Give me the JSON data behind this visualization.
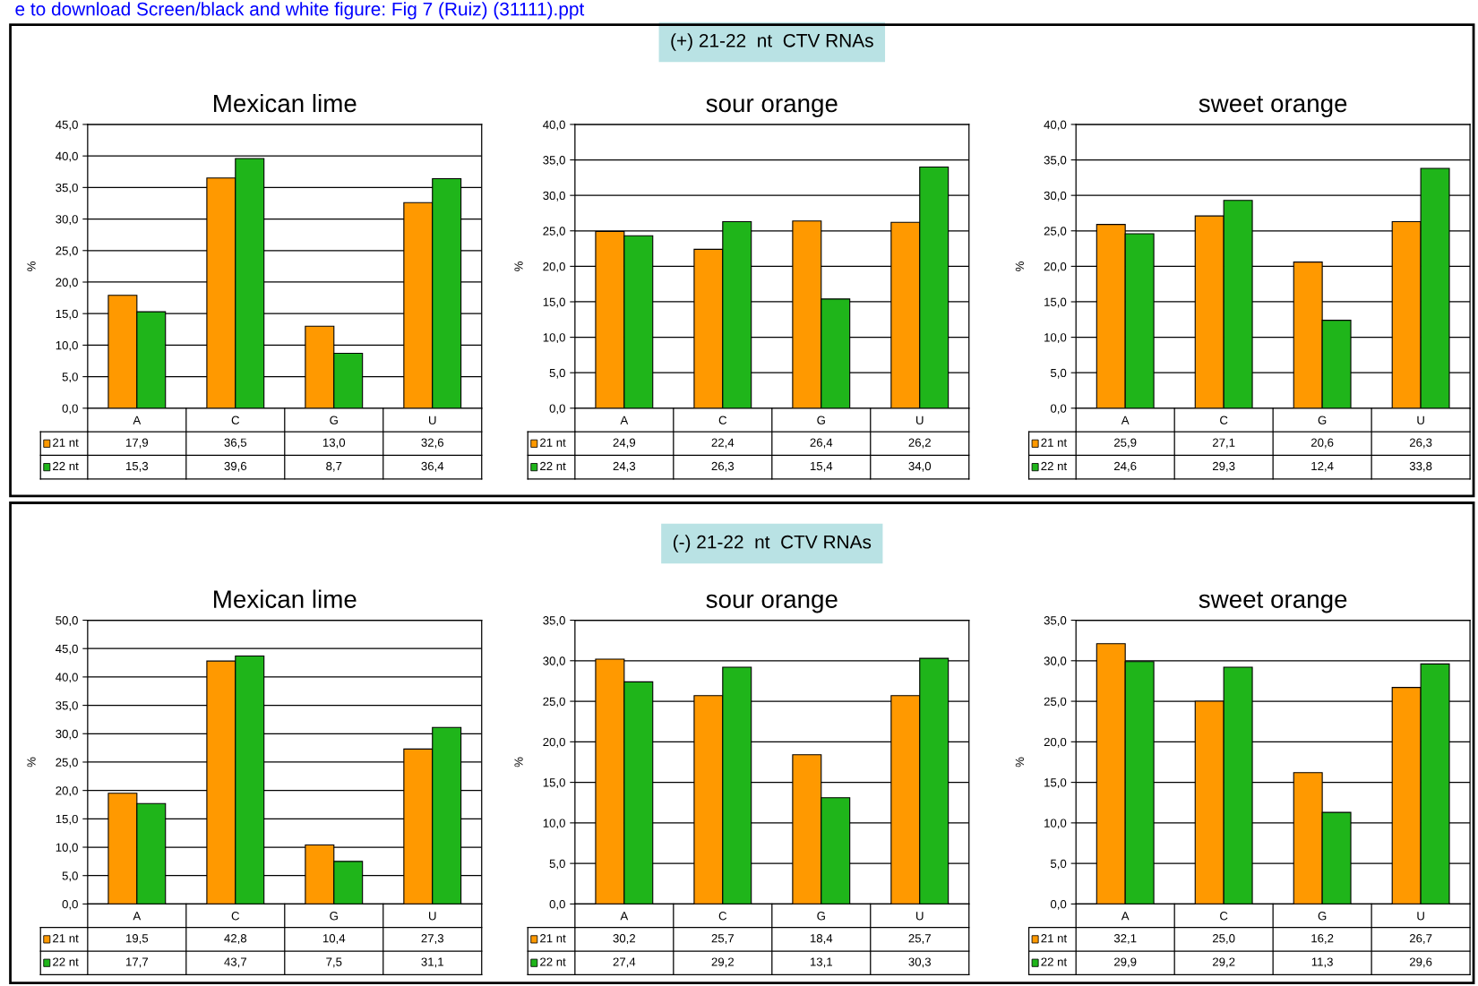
{
  "chart_data": [
    {
      "type": "bar",
      "title": "Mexican lime",
      "ylabel": "%",
      "annotations": [
        "e to download Screen/black and white figure: Fig 7 (Ruiz) (31111).ppt"
      ],
      "categories": [
        "A",
        "C",
        "G",
        "U"
      ],
      "grid": "y",
      "legend": "bottom",
      "ylim": [
        0,
        45
      ],
      "yticks": [
        {
          "value": 0,
          "label": "0,0"
        },
        {
          "value": 5,
          "label": "5,0"
        },
        {
          "value": 10,
          "label": "10,0"
        },
        {
          "value": 15,
          "label": "15,0"
        },
        {
          "value": 20,
          "label": "20,0"
        },
        {
          "value": 25,
          "label": "25,0"
        },
        {
          "value": 30,
          "label": "30,0"
        },
        {
          "value": 35,
          "label": "35,0"
        },
        {
          "value": 40,
          "label": "40,0"
        },
        {
          "value": 45,
          "label": "45,0"
        }
      ],
      "series": [
        {
          "name": "21 nt",
          "color": "#ff9900",
          "values": [
            17.9,
            36.5,
            13.0,
            32.6
          ],
          "value_labels": [
            "17,9",
            "36,5",
            "13,0",
            "32,6"
          ]
        },
        {
          "name": "22 nt",
          "color": "#1fb51a",
          "values": [
            15.3,
            39.6,
            8.7,
            36.4
          ],
          "value_labels": [
            "15,3",
            "39,6",
            "8,7",
            "36,4"
          ]
        }
      ]
    },
    {
      "type": "bar",
      "title": "sour orange",
      "subtitle": "(+) 21-22  nt  CTV RNAs",
      "ylabel": "%",
      "categories": [
        "A",
        "C",
        "G",
        "U"
      ],
      "grid": "y",
      "legend": "bottom",
      "ylim": [
        0,
        40
      ],
      "yticks": [
        {
          "value": 0,
          "label": "0,0"
        },
        {
          "value": 5,
          "label": "5,0"
        },
        {
          "value": 10,
          "label": "10,0"
        },
        {
          "value": 15,
          "label": "15,0"
        },
        {
          "value": 20,
          "label": "20,0"
        },
        {
          "value": 25,
          "label": "25,0"
        },
        {
          "value": 30,
          "label": "30,0"
        },
        {
          "value": 35,
          "label": "35,0"
        },
        {
          "value": 40,
          "label": "40,0"
        }
      ],
      "series": [
        {
          "name": "21 nt",
          "color": "#ff9900",
          "values": [
            24.9,
            22.4,
            26.4,
            26.2
          ],
          "value_labels": [
            "24,9",
            "22,4",
            "26,4",
            "26,2"
          ]
        },
        {
          "name": "22 nt",
          "color": "#1fb51a",
          "values": [
            24.3,
            26.3,
            15.4,
            34.0
          ],
          "value_labels": [
            "24,3",
            "26,3",
            "15,4",
            "34,0"
          ]
        }
      ]
    },
    {
      "type": "bar",
      "title": "sweet orange",
      "ylabel": "%",
      "categories": [
        "A",
        "C",
        "G",
        "U"
      ],
      "grid": "y",
      "legend": "bottom",
      "ylim": [
        0,
        40
      ],
      "yticks": [
        {
          "value": 0,
          "label": "0,0"
        },
        {
          "value": 5,
          "label": "5,0"
        },
        {
          "value": 10,
          "label": "10,0"
        },
        {
          "value": 15,
          "label": "15,0"
        },
        {
          "value": 20,
          "label": "20,0"
        },
        {
          "value": 25,
          "label": "25,0"
        },
        {
          "value": 30,
          "label": "30,0"
        },
        {
          "value": 35,
          "label": "35,0"
        },
        {
          "value": 40,
          "label": "40,0"
        }
      ],
      "series": [
        {
          "name": "21 nt",
          "color": "#ff9900",
          "values": [
            25.9,
            27.1,
            20.6,
            26.3
          ],
          "value_labels": [
            "25,9",
            "27,1",
            "20,6",
            "26,3"
          ]
        },
        {
          "name": "22 nt",
          "color": "#1fb51a",
          "values": [
            24.6,
            29.3,
            12.4,
            33.8
          ],
          "value_labels": [
            "24,6",
            "29,3",
            "12,4",
            "33,8"
          ]
        }
      ]
    },
    {
      "type": "bar",
      "title": "Mexican lime",
      "ylabel": "%",
      "categories": [
        "A",
        "C",
        "G",
        "U"
      ],
      "grid": "y",
      "legend": "bottom",
      "ylim": [
        0,
        50
      ],
      "yticks": [
        {
          "value": 0,
          "label": "0,0"
        },
        {
          "value": 5,
          "label": "5,0"
        },
        {
          "value": 10,
          "label": "10,0"
        },
        {
          "value": 15,
          "label": "15,0"
        },
        {
          "value": 20,
          "label": "20,0"
        },
        {
          "value": 25,
          "label": "25,0"
        },
        {
          "value": 30,
          "label": "30,0"
        },
        {
          "value": 35,
          "label": "35,0"
        },
        {
          "value": 40,
          "label": "40,0"
        },
        {
          "value": 45,
          "label": "45,0"
        },
        {
          "value": 50,
          "label": "50,0"
        }
      ],
      "series": [
        {
          "name": "21 nt",
          "color": "#ff9900",
          "values": [
            19.5,
            42.8,
            10.4,
            27.3
          ],
          "value_labels": [
            "19,5",
            "42,8",
            "10,4",
            "27,3"
          ]
        },
        {
          "name": "22 nt",
          "color": "#1fb51a",
          "values": [
            17.7,
            43.7,
            7.5,
            31.1
          ],
          "value_labels": [
            "17,7",
            "43,7",
            "7,5",
            "31,1"
          ]
        }
      ]
    },
    {
      "type": "bar",
      "title": "sour orange",
      "subtitle": "(-) 21-22  nt  CTV RNAs",
      "ylabel": "%",
      "categories": [
        "A",
        "C",
        "G",
        "U"
      ],
      "grid": "y",
      "legend": "bottom",
      "ylim": [
        0,
        35
      ],
      "yticks": [
        {
          "value": 0,
          "label": "0,0"
        },
        {
          "value": 5,
          "label": "5,0"
        },
        {
          "value": 10,
          "label": "10,0"
        },
        {
          "value": 15,
          "label": "15,0"
        },
        {
          "value": 20,
          "label": "20,0"
        },
        {
          "value": 25,
          "label": "25,0"
        },
        {
          "value": 30,
          "label": "30,0"
        },
        {
          "value": 35,
          "label": "35,0"
        }
      ],
      "series": [
        {
          "name": "21 nt",
          "color": "#ff9900",
          "values": [
            30.2,
            25.7,
            18.4,
            25.7
          ],
          "value_labels": [
            "30,2",
            "25,7",
            "18,4",
            "25,7"
          ]
        },
        {
          "name": "22 nt",
          "color": "#1fb51a",
          "values": [
            27.4,
            29.2,
            13.1,
            30.3
          ],
          "value_labels": [
            "27,4",
            "29,2",
            "13,1",
            "30,3"
          ]
        }
      ]
    },
    {
      "type": "bar",
      "title": "sweet orange",
      "ylabel": "%",
      "categories": [
        "A",
        "C",
        "G",
        "U"
      ],
      "grid": "y",
      "legend": "bottom",
      "ylim": [
        0,
        35
      ],
      "yticks": [
        {
          "value": 0,
          "label": "0,0"
        },
        {
          "value": 5,
          "label": "5,0"
        },
        {
          "value": 10,
          "label": "10,0"
        },
        {
          "value": 15,
          "label": "15,0"
        },
        {
          "value": 20,
          "label": "20,0"
        },
        {
          "value": 25,
          "label": "25,0"
        },
        {
          "value": 30,
          "label": "30,0"
        },
        {
          "value": 35,
          "label": "35,0"
        }
      ],
      "series": [
        {
          "name": "21 nt",
          "color": "#ff9900",
          "values": [
            32.1,
            25.0,
            16.2,
            26.7
          ],
          "value_labels": [
            "32,1",
            "25,0",
            "16,2",
            "26,7"
          ]
        },
        {
          "name": "22 nt",
          "color": "#1fb51a",
          "values": [
            29.9,
            29.2,
            11.3,
            29.6
          ],
          "value_labels": [
            "29,9",
            "29,2",
            "11,3",
            "29,6"
          ]
        }
      ]
    }
  ]
}
